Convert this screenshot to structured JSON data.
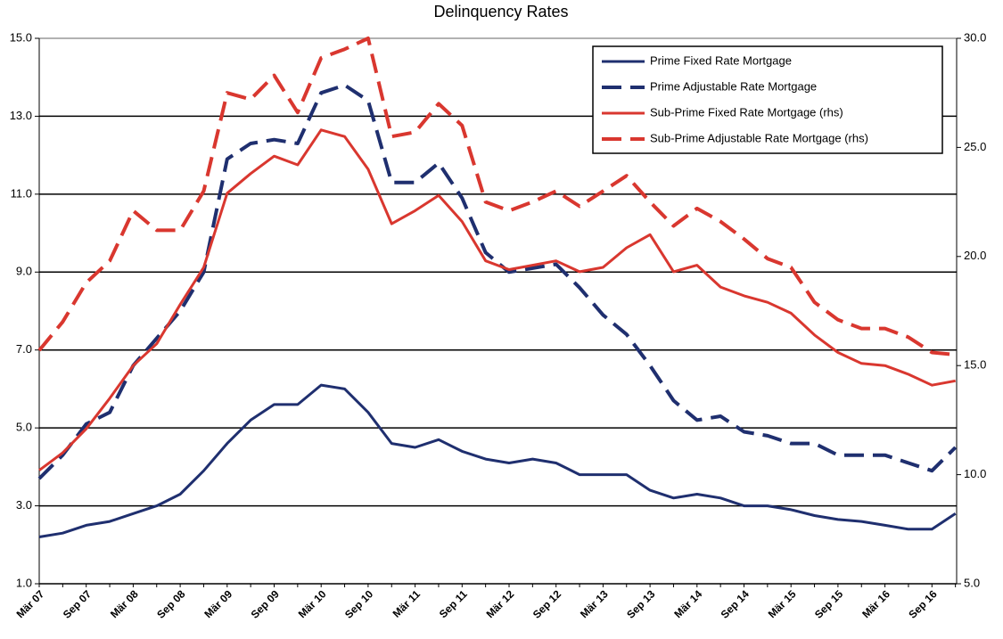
{
  "chart_data": {
    "type": "line",
    "title": "Delinquency Rates",
    "categories": [
      "Mär 07",
      null,
      "Sep 07",
      null,
      "Mär 08",
      null,
      "Sep 08",
      null,
      "Mär 09",
      null,
      "Sep 09",
      null,
      "Mär 10",
      null,
      "Sep 10",
      null,
      "Mär 11",
      null,
      "Sep 11",
      null,
      "Mär 12",
      null,
      "Sep 12",
      null,
      "Mär 13",
      null,
      "Sep 13",
      null,
      "Mär 14",
      null,
      "Sep 14",
      null,
      "Mär 15",
      null,
      "Sep 15",
      null,
      "Mär 16",
      null,
      "Sep 16",
      null
    ],
    "series": [
      {
        "name": "Prime Fixed Rate Mortgage",
        "color": "#1f2f6f",
        "line_style": "solid",
        "axis": "y",
        "values": [
          2.2,
          2.3,
          2.5,
          2.6,
          2.8,
          3.0,
          3.3,
          3.9,
          4.6,
          5.2,
          5.6,
          5.6,
          6.1,
          6.0,
          5.4,
          4.6,
          4.5,
          4.7,
          4.4,
          4.2,
          4.1,
          4.2,
          4.1,
          3.8,
          3.8,
          3.8,
          3.4,
          3.2,
          3.3,
          3.2,
          3.0,
          3.0,
          2.9,
          2.75,
          2.65,
          2.6,
          2.5,
          2.4,
          2.4,
          2.8
        ]
      },
      {
        "name": "Prime Adjustable Rate Mortgage",
        "color": "#1f2f6f",
        "line_style": "dashed",
        "axis": "y",
        "values": [
          3.7,
          4.3,
          5.1,
          5.4,
          6.6,
          7.3,
          8.0,
          9.0,
          11.9,
          12.3,
          12.4,
          12.3,
          13.6,
          13.8,
          13.4,
          11.3,
          11.3,
          11.8,
          10.9,
          9.5,
          9.0,
          9.1,
          9.2,
          8.6,
          7.9,
          7.4,
          6.6,
          5.7,
          5.2,
          5.3,
          4.9,
          4.8,
          4.6,
          4.6,
          4.3,
          4.3,
          4.3,
          4.1,
          3.9,
          4.5
        ]
      },
      {
        "name": "Sub-Prime Fixed Rate Mortgage (rhs)",
        "color": "#d9372f",
        "line_style": "solid",
        "axis": "y2",
        "values": [
          10.2,
          11.0,
          12.1,
          13.5,
          15.0,
          16.0,
          17.8,
          19.5,
          22.9,
          23.8,
          24.6,
          24.2,
          25.8,
          25.5,
          24.0,
          21.5,
          22.1,
          22.8,
          21.6,
          19.8,
          19.4,
          19.6,
          19.8,
          19.3,
          19.5,
          20.4,
          21.0,
          19.3,
          19.6,
          18.6,
          18.2,
          17.9,
          17.4,
          16.4,
          15.6,
          15.1,
          15.0,
          14.6,
          14.1,
          14.3
        ]
      },
      {
        "name": "Sub-Prime Adjustable Rate Mortgage (rhs)",
        "color": "#d9372f",
        "line_style": "dashed",
        "axis": "y2",
        "values": [
          15.7,
          17.0,
          18.8,
          19.8,
          22.1,
          21.2,
          21.2,
          23.0,
          27.5,
          27.2,
          28.3,
          26.6,
          29.1,
          29.5,
          30.0,
          25.5,
          25.7,
          27.0,
          26.0,
          22.5,
          22.1,
          22.5,
          23.0,
          22.3,
          23.0,
          23.7,
          22.5,
          21.4,
          22.2,
          21.6,
          20.8,
          19.9,
          19.5,
          17.9,
          17.1,
          16.7,
          16.7,
          16.3,
          15.6,
          15.5
        ]
      }
    ],
    "ylim": [
      1,
      15
    ],
    "yticks": [
      {
        "value": 1,
        "label": "1.0"
      },
      {
        "value": 3,
        "label": "3.0"
      },
      {
        "value": 5,
        "label": "5.0"
      },
      {
        "value": 7,
        "label": "7.0"
      },
      {
        "value": 9,
        "label": "9.0"
      },
      {
        "value": 11,
        "label": "11.0"
      },
      {
        "value": 13,
        "label": "13.0"
      },
      {
        "value": 15,
        "label": "15.0"
      }
    ],
    "y2lim": [
      5,
      30
    ],
    "y2ticks": [
      {
        "value": 5,
        "label": "5.0"
      },
      {
        "value": 10,
        "label": "10.0"
      },
      {
        "value": 15,
        "label": "15.0"
      },
      {
        "value": 20,
        "label": "20.0"
      },
      {
        "value": 25,
        "label": "25.0"
      },
      {
        "value": 30,
        "label": "30.0"
      }
    ],
    "grid": true,
    "legend": "upper right"
  }
}
